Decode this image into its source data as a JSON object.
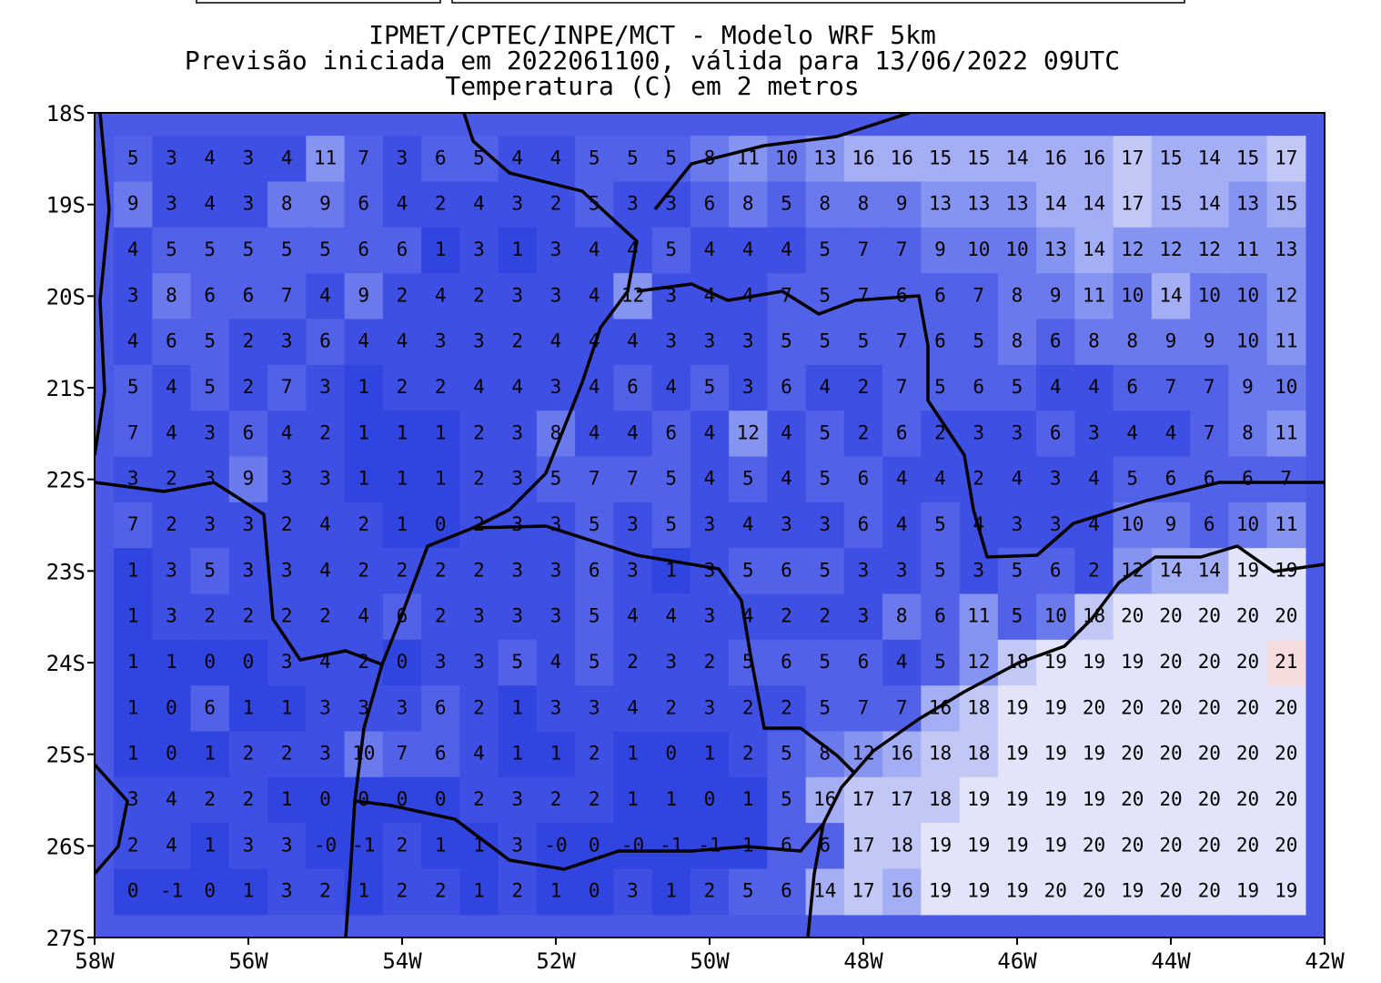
{
  "header": {
    "lines": [
      "IPMET/CPTEC/INPE/MCT - Modelo WRF 5km",
      "Previsão iniciada em 2022061100, válida para 13/06/2022 09UTC",
      "Temperatura (C) em 2 metros"
    ]
  },
  "map": {
    "x_labels": [
      "58W",
      "56W",
      "54W",
      "52W",
      "50W",
      "48W",
      "46W",
      "44W",
      "42W"
    ],
    "y_labels": [
      "18S",
      "19S",
      "20S",
      "21S",
      "22S",
      "23S",
      "24S",
      "25S",
      "26S",
      "27S"
    ],
    "grid": [
      [
        "5",
        "3",
        "4",
        "3",
        "4",
        "11",
        "7",
        "3",
        "6",
        "5",
        "4",
        "4",
        "5",
        "5",
        "5",
        "8",
        "11",
        "10",
        "13",
        "16",
        "16",
        "15",
        "15",
        "14",
        "16",
        "16",
        "17",
        "15",
        "14",
        "15",
        "17"
      ],
      [
        "9",
        "3",
        "4",
        "3",
        "8",
        "9",
        "6",
        "4",
        "2",
        "4",
        "3",
        "2",
        "5",
        "3",
        "3",
        "6",
        "8",
        "5",
        "8",
        "8",
        "9",
        "13",
        "13",
        "13",
        "14",
        "14",
        "17",
        "15",
        "14",
        "13",
        "15"
      ],
      [
        "4",
        "5",
        "5",
        "5",
        "5",
        "5",
        "6",
        "6",
        "1",
        "3",
        "1",
        "3",
        "4",
        "4",
        "5",
        "4",
        "4",
        "4",
        "5",
        "7",
        "7",
        "9",
        "10",
        "10",
        "13",
        "14",
        "12",
        "12",
        "12",
        "11",
        "13"
      ],
      [
        "3",
        "8",
        "6",
        "6",
        "7",
        "4",
        "9",
        "2",
        "4",
        "2",
        "3",
        "3",
        "4",
        "12",
        "3",
        "4",
        "4",
        "7",
        "5",
        "7",
        "6",
        "6",
        "7",
        "8",
        "9",
        "11",
        "10",
        "14",
        "10",
        "10",
        "12"
      ],
      [
        "4",
        "6",
        "5",
        "2",
        "3",
        "6",
        "4",
        "4",
        "3",
        "3",
        "2",
        "4",
        "4",
        "4",
        "3",
        "3",
        "3",
        "5",
        "5",
        "5",
        "7",
        "6",
        "5",
        "8",
        "6",
        "8",
        "8",
        "9",
        "9",
        "10",
        "11"
      ],
      [
        "5",
        "4",
        "5",
        "2",
        "7",
        "3",
        "1",
        "2",
        "2",
        "4",
        "4",
        "3",
        "4",
        "6",
        "4",
        "5",
        "3",
        "6",
        "4",
        "2",
        "7",
        "5",
        "6",
        "5",
        "4",
        "4",
        "6",
        "7",
        "7",
        "9",
        "10"
      ],
      [
        "7",
        "4",
        "3",
        "6",
        "4",
        "2",
        "1",
        "1",
        "1",
        "2",
        "3",
        "8",
        "4",
        "4",
        "6",
        "4",
        "12",
        "4",
        "5",
        "2",
        "6",
        "2",
        "3",
        "3",
        "6",
        "3",
        "4",
        "4",
        "7",
        "8",
        "11"
      ],
      [
        "3",
        "2",
        "3",
        "9",
        "3",
        "3",
        "1",
        "1",
        "1",
        "2",
        "3",
        "5",
        "7",
        "7",
        "5",
        "4",
        "5",
        "4",
        "5",
        "6",
        "4",
        "4",
        "2",
        "4",
        "3",
        "4",
        "5",
        "6",
        "6",
        "6",
        "7"
      ],
      [
        "7",
        "2",
        "3",
        "3",
        "2",
        "4",
        "2",
        "1",
        "0",
        "2",
        "3",
        "3",
        "5",
        "3",
        "5",
        "3",
        "4",
        "3",
        "3",
        "6",
        "4",
        "5",
        "4",
        "3",
        "3",
        "4",
        "10",
        "9",
        "6",
        "10",
        "11"
      ],
      [
        "1",
        "3",
        "5",
        "3",
        "3",
        "4",
        "2",
        "2",
        "2",
        "2",
        "3",
        "3",
        "6",
        "3",
        "1",
        "3",
        "5",
        "6",
        "5",
        "3",
        "3",
        "5",
        "3",
        "5",
        "6",
        "2",
        "12",
        "14",
        "14",
        "19",
        "19"
      ],
      [
        "1",
        "3",
        "2",
        "2",
        "2",
        "2",
        "4",
        "6",
        "2",
        "3",
        "3",
        "3",
        "5",
        "4",
        "4",
        "3",
        "4",
        "2",
        "2",
        "3",
        "8",
        "6",
        "11",
        "5",
        "10",
        "18",
        "20",
        "20",
        "20",
        "20",
        "20"
      ],
      [
        "1",
        "1",
        "0",
        "0",
        "3",
        "4",
        "2",
        "0",
        "3",
        "3",
        "5",
        "4",
        "5",
        "2",
        "3",
        "2",
        "5",
        "6",
        "5",
        "6",
        "4",
        "5",
        "12",
        "18",
        "19",
        "19",
        "19",
        "20",
        "20",
        "20",
        "21"
      ],
      [
        "1",
        "0",
        "6",
        "1",
        "1",
        "3",
        "3",
        "3",
        "6",
        "2",
        "1",
        "3",
        "3",
        "4",
        "2",
        "3",
        "2",
        "2",
        "5",
        "7",
        "7",
        "16",
        "18",
        "19",
        "19",
        "20",
        "20",
        "20",
        "20",
        "20",
        "20"
      ],
      [
        "1",
        "0",
        "1",
        "2",
        "2",
        "3",
        "10",
        "7",
        "6",
        "4",
        "1",
        "1",
        "2",
        "1",
        "0",
        "1",
        "2",
        "5",
        "8",
        "12",
        "16",
        "18",
        "18",
        "19",
        "19",
        "19",
        "20",
        "20",
        "20",
        "20",
        "20"
      ],
      [
        "3",
        "4",
        "2",
        "2",
        "1",
        "0",
        "0",
        "0",
        "0",
        "2",
        "3",
        "2",
        "2",
        "1",
        "1",
        "0",
        "1",
        "5",
        "16",
        "17",
        "17",
        "18",
        "19",
        "19",
        "19",
        "19",
        "20",
        "20",
        "20",
        "20",
        "20"
      ],
      [
        "2",
        "4",
        "1",
        "3",
        "3",
        "-0",
        "-1",
        "2",
        "1",
        "1",
        "3",
        "-0",
        "0",
        "-0",
        "-1",
        "-1",
        "1",
        "6",
        "6",
        "17",
        "18",
        "19",
        "19",
        "19",
        "19",
        "20",
        "20",
        "20",
        "20",
        "20",
        "20"
      ],
      [
        "0",
        "-1",
        "0",
        "1",
        "3",
        "2",
        "1",
        "2",
        "2",
        "1",
        "2",
        "1",
        "0",
        "3",
        "1",
        "2",
        "5",
        "6",
        "14",
        "17",
        "16",
        "19",
        "19",
        "19",
        "20",
        "20",
        "19",
        "20",
        "20",
        "19",
        "19"
      ]
    ]
  }
}
